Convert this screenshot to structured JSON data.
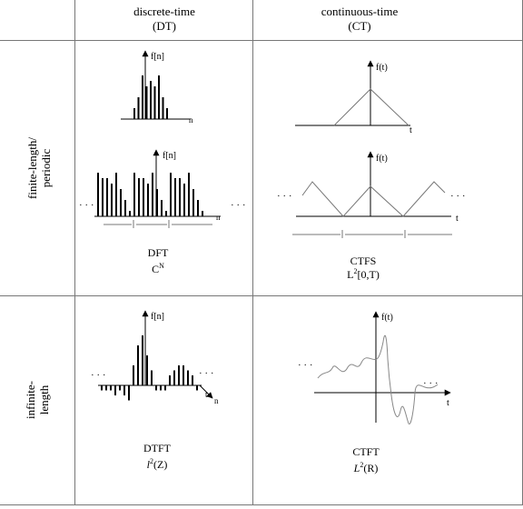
{
  "header": {
    "dt_title": "discrete-time",
    "dt_abbr": "(DT)",
    "ct_title": "continuous-time",
    "ct_abbr": "(CT)"
  },
  "rows": {
    "finite_line1": "finite-length/",
    "finite_line2": "periodic",
    "infinite_line1": "infinite-",
    "infinite_line2": "length"
  },
  "cells": {
    "dft": {
      "name": "DFT",
      "space_base": "C",
      "space_sup": "N"
    },
    "ctfs": {
      "name": "CTFS",
      "space_base": "L",
      "space_sup": "2",
      "space_tail": "[0,T)"
    },
    "dtft": {
      "name": "DTFT",
      "space_base": "l",
      "space_sup": "2",
      "space_tail": "(Z)"
    },
    "ctft": {
      "name": "CTFT",
      "space_base": "L",
      "space_sup": "2",
      "space_tail": "(R)"
    }
  },
  "plot_labels": {
    "fn": "f[n]",
    "fn_periodic": "f[n]",
    "ft": "f(t)",
    "n": "n",
    "t": "t",
    "ellipsis": "· · ·"
  },
  "signals": {
    "finite_dt_samples": [
      2,
      4,
      8,
      6,
      7,
      6,
      8,
      4,
      2
    ],
    "periodic_dt_period": [
      8,
      7,
      7,
      6,
      8,
      5,
      3,
      1
    ],
    "infinite_dt_samples": [
      1,
      1,
      1,
      2,
      1,
      2,
      3,
      4,
      8,
      10,
      6,
      3,
      1,
      1,
      1,
      2,
      3,
      4,
      4,
      3,
      2,
      1
    ]
  },
  "colors": {
    "ink": "#000000",
    "grid": "#777777",
    "gray_curve": "#888888"
  }
}
